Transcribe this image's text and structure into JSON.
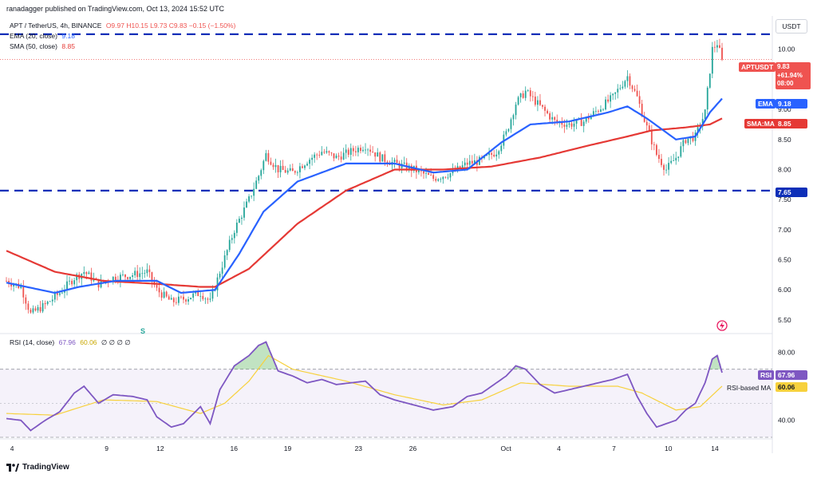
{
  "header": {
    "published": "ranadagger published on TradingView.com, Oct 13, 2024 15:52 UTC"
  },
  "legend": {
    "symbol": "APT / TetherUS, 4h, BINANCE",
    "ohlc": "O9.97 H10.15 L9.73 C9.83 −0.15 (−1.50%)",
    "ema_label": "EMA (20, close)",
    "ema_value": "9.18",
    "sma_label": "SMA (50, close)",
    "sma_value": "8.85"
  },
  "rsi_legend": {
    "label": "RSI (14, close)",
    "rsi_value": "67.96",
    "ma_value": "60.06",
    "extra": "∅ ∅ ∅ ∅"
  },
  "currency_button": "USDT",
  "price_tags": {
    "ticker": "APTUSDT",
    "price": "9.83",
    "change": "+61.94%",
    "countdown": "08:00",
    "ema_tag": "EMA",
    "ema_value": "9.18",
    "sma_tag": "SMA:MA",
    "sma_value": "8.85",
    "support_value": "7.65",
    "rsi_tag": "RSI",
    "rsi_value": "67.96",
    "rsi_ma_tag": "RSI-based MA",
    "rsi_ma_value": "60.06"
  },
  "footer": {
    "brand": "TradingView"
  },
  "colors": {
    "up": "#26a69a",
    "down": "#ef5350",
    "ema": "#2962ff",
    "sma": "#e53935",
    "rsi": "#7e57c2",
    "rsi_ma": "#f7d13d",
    "level": "#0d2fb8"
  },
  "chart_data": [
    {
      "type": "candlestick",
      "title": "APT / TetherUS, 4h, BINANCE",
      "ylim": [
        5.3,
        10.5
      ],
      "y_ticks": [
        "10.00",
        "9.50",
        "9.00",
        "8.50",
        "8.00",
        "7.50",
        "7.00",
        "6.50",
        "6.00",
        "5.50"
      ],
      "x_ticks": [
        "4",
        "9",
        "12",
        "16",
        "19",
        "23",
        "26",
        "Oct",
        "4",
        "7",
        "10",
        "14"
      ],
      "horizontal_levels": [
        7.65,
        10.25
      ],
      "anchors": [
        [
          0,
          6.15
        ],
        [
          6,
          6.05
        ],
        [
          10,
          5.6
        ],
        [
          16,
          5.75
        ],
        [
          22,
          5.95
        ],
        [
          28,
          6.2
        ],
        [
          32,
          6.3
        ],
        [
          38,
          6.1
        ],
        [
          44,
          6.2
        ],
        [
          52,
          6.25
        ],
        [
          58,
          6.3
        ],
        [
          62,
          6.0
        ],
        [
          68,
          5.8
        ],
        [
          73,
          5.85
        ],
        [
          80,
          5.95
        ],
        [
          84,
          5.8
        ],
        [
          88,
          6.3
        ],
        [
          94,
          7.0
        ],
        [
          100,
          7.5
        ],
        [
          104,
          7.9
        ],
        [
          107,
          8.25
        ],
        [
          112,
          8.0
        ],
        [
          118,
          7.95
        ],
        [
          124,
          8.15
        ],
        [
          130,
          8.3
        ],
        [
          136,
          8.2
        ],
        [
          142,
          8.3
        ],
        [
          148,
          8.4
        ],
        [
          154,
          8.2
        ],
        [
          160,
          8.1
        ],
        [
          168,
          8.0
        ],
        [
          176,
          7.85
        ],
        [
          184,
          7.95
        ],
        [
          190,
          8.1
        ],
        [
          196,
          8.15
        ],
        [
          202,
          8.3
        ],
        [
          206,
          8.6
        ],
        [
          210,
          9.1
        ],
        [
          214,
          9.3
        ],
        [
          220,
          9.05
        ],
        [
          226,
          8.8
        ],
        [
          232,
          8.75
        ],
        [
          238,
          8.8
        ],
        [
          244,
          9.0
        ],
        [
          250,
          9.2
        ],
        [
          256,
          9.55
        ],
        [
          260,
          9.2
        ],
        [
          264,
          8.7
        ],
        [
          268,
          8.25
        ],
        [
          272,
          8.0
        ],
        [
          276,
          8.2
        ],
        [
          280,
          8.5
        ],
        [
          284,
          8.55
        ],
        [
          288,
          8.95
        ],
        [
          291,
          10.0
        ],
        [
          293,
          10.1
        ],
        [
          295,
          9.83
        ]
      ],
      "ema": [
        [
          0,
          6.12
        ],
        [
          20,
          5.95
        ],
        [
          30,
          6.05
        ],
        [
          45,
          6.15
        ],
        [
          62,
          6.15
        ],
        [
          72,
          5.95
        ],
        [
          86,
          6.0
        ],
        [
          96,
          6.6
        ],
        [
          106,
          7.3
        ],
        [
          120,
          7.8
        ],
        [
          140,
          8.1
        ],
        [
          160,
          8.1
        ],
        [
          176,
          7.95
        ],
        [
          190,
          8.0
        ],
        [
          204,
          8.45
        ],
        [
          216,
          8.75
        ],
        [
          232,
          8.8
        ],
        [
          248,
          8.95
        ],
        [
          256,
          9.05
        ],
        [
          264,
          8.85
        ],
        [
          276,
          8.5
        ],
        [
          284,
          8.55
        ],
        [
          290,
          8.95
        ],
        [
          295,
          9.18
        ]
      ],
      "sma": [
        [
          0,
          6.65
        ],
        [
          20,
          6.3
        ],
        [
          40,
          6.15
        ],
        [
          62,
          6.1
        ],
        [
          80,
          6.05
        ],
        [
          86,
          6.05
        ],
        [
          100,
          6.35
        ],
        [
          120,
          7.1
        ],
        [
          140,
          7.65
        ],
        [
          160,
          8.0
        ],
        [
          180,
          8.0
        ],
        [
          200,
          8.05
        ],
        [
          220,
          8.2
        ],
        [
          240,
          8.4
        ],
        [
          256,
          8.55
        ],
        [
          266,
          8.65
        ],
        [
          280,
          8.7
        ],
        [
          290,
          8.75
        ],
        [
          295,
          8.85
        ]
      ]
    },
    {
      "type": "line",
      "title": "RSI (14, close)",
      "ylim": [
        30,
        90
      ],
      "y_ticks": [
        "80.00",
        "40.00"
      ],
      "bands": [
        70,
        30
      ],
      "rsi": [
        [
          0,
          41
        ],
        [
          6,
          40
        ],
        [
          10,
          34
        ],
        [
          16,
          40
        ],
        [
          22,
          45
        ],
        [
          28,
          56
        ],
        [
          32,
          60
        ],
        [
          38,
          50
        ],
        [
          44,
          55
        ],
        [
          52,
          54
        ],
        [
          58,
          52
        ],
        [
          62,
          42
        ],
        [
          68,
          36
        ],
        [
          73,
          38
        ],
        [
          80,
          48
        ],
        [
          84,
          38
        ],
        [
          88,
          58
        ],
        [
          94,
          72
        ],
        [
          100,
          78
        ],
        [
          104,
          84
        ],
        [
          107,
          86
        ],
        [
          112,
          69
        ],
        [
          118,
          66
        ],
        [
          124,
          62
        ],
        [
          130,
          64
        ],
        [
          136,
          61
        ],
        [
          142,
          62
        ],
        [
          148,
          63
        ],
        [
          154,
          55
        ],
        [
          160,
          52
        ],
        [
          168,
          49
        ],
        [
          176,
          46
        ],
        [
          184,
          48
        ],
        [
          190,
          54
        ],
        [
          196,
          56
        ],
        [
          202,
          62
        ],
        [
          206,
          66
        ],
        [
          210,
          72
        ],
        [
          214,
          70
        ],
        [
          220,
          61
        ],
        [
          226,
          56
        ],
        [
          232,
          58
        ],
        [
          238,
          60
        ],
        [
          244,
          62
        ],
        [
          250,
          64
        ],
        [
          256,
          67
        ],
        [
          260,
          54
        ],
        [
          264,
          44
        ],
        [
          268,
          36
        ],
        [
          272,
          38
        ],
        [
          276,
          40
        ],
        [
          280,
          46
        ],
        [
          284,
          50
        ],
        [
          288,
          62
        ],
        [
          291,
          76
        ],
        [
          293,
          78
        ],
        [
          295,
          67.96
        ]
      ],
      "rsi_ma": [
        [
          0,
          44
        ],
        [
          20,
          43
        ],
        [
          40,
          52
        ],
        [
          62,
          51
        ],
        [
          80,
          44
        ],
        [
          90,
          50
        ],
        [
          100,
          63
        ],
        [
          108,
          78
        ],
        [
          118,
          70
        ],
        [
          140,
          63
        ],
        [
          160,
          55
        ],
        [
          180,
          49
        ],
        [
          196,
          52
        ],
        [
          212,
          62
        ],
        [
          232,
          60
        ],
        [
          252,
          60
        ],
        [
          262,
          56
        ],
        [
          276,
          46
        ],
        [
          286,
          48
        ],
        [
          295,
          60.06
        ]
      ]
    }
  ]
}
